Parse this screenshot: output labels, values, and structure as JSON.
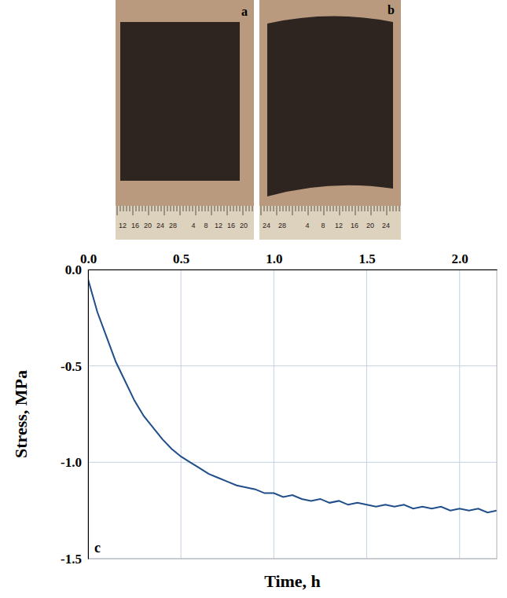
{
  "chart_data": {
    "type": "line",
    "x_label": "Time, h",
    "y_label": "Stress, MPa",
    "panel_label": "c",
    "color": "#1f4e8a",
    "grid": true,
    "xlim": [
      0,
      2.2
    ],
    "xticks": [
      {
        "value": 0,
        "label": "0.0"
      },
      0.5,
      {
        "value": 1,
        "label": "1.0"
      },
      1.5,
      {
        "value": 2,
        "label": "2.0"
      }
    ],
    "ylim": [
      -1.5,
      0
    ],
    "yticks": [
      {
        "value": 0,
        "label": "0.0"
      },
      -0.5,
      {
        "value": -1,
        "label": "-1.0"
      },
      -1.5
    ],
    "x": [
      0,
      0.05,
      0.1,
      0.15,
      0.2,
      0.25,
      0.3,
      0.35,
      0.4,
      0.45,
      0.5,
      0.55,
      0.6,
      0.65,
      0.7,
      0.75,
      0.8,
      0.85,
      0.9,
      0.95,
      1,
      1.05,
      1.1,
      1.15,
      1.2,
      1.25,
      1.3,
      1.35,
      1.4,
      1.45,
      1.5,
      1.55,
      1.6,
      1.65,
      1.7,
      1.75,
      1.8,
      1.85,
      1.9,
      1.95,
      2,
      2.05,
      2.1,
      2.15,
      2.2
    ],
    "values": [
      -0.05,
      -0.22,
      -0.35,
      -0.48,
      -0.58,
      -0.68,
      -0.76,
      -0.82,
      -0.88,
      -0.93,
      -0.97,
      -1.0,
      -1.03,
      -1.06,
      -1.08,
      -1.1,
      -1.12,
      -1.13,
      -1.14,
      -1.16,
      -1.16,
      -1.18,
      -1.17,
      -1.19,
      -1.2,
      -1.19,
      -1.21,
      -1.2,
      -1.22,
      -1.21,
      -1.22,
      -1.23,
      -1.22,
      -1.23,
      -1.22,
      -1.24,
      -1.23,
      -1.24,
      -1.23,
      -1.25,
      -1.24,
      -1.25,
      -1.24,
      -1.26,
      -1.25
    ]
  },
  "panels": [
    {
      "letter": "a",
      "ruler_labels": [
        "12",
        "16",
        "20",
        "24",
        "28",
        "4",
        "8",
        "12",
        "16",
        "20"
      ]
    },
    {
      "letter": "b",
      "ruler_labels": [
        "24",
        "28",
        "4",
        "8",
        "12",
        "16",
        "20",
        "24"
      ]
    }
  ]
}
